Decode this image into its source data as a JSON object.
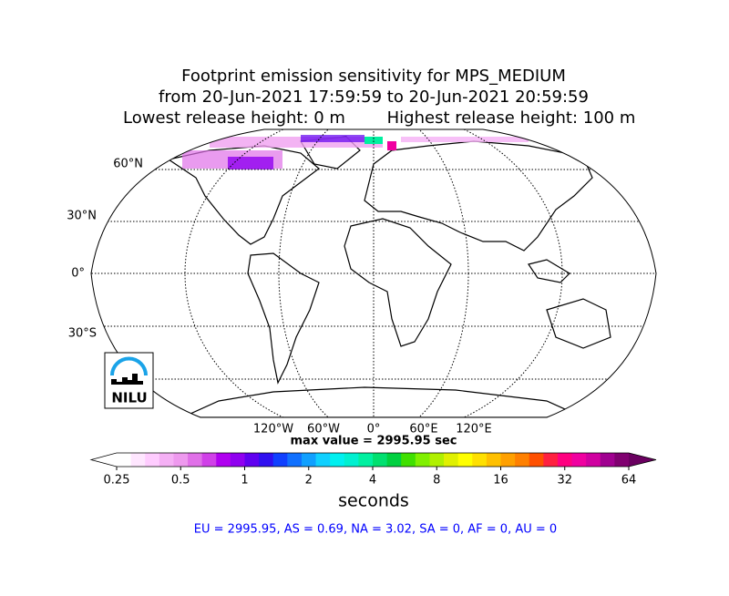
{
  "title": {
    "lines": [
      "Footprint emission sensitivity for MPS_MEDIUM",
      "from 20-Jun-2021 17:59:59 to 20-Jun-2021 20:59:59"
    ],
    "lowest": "Lowest release height: 0 m",
    "highest": "Highest release height: 100 m"
  },
  "map": {
    "lat_labels": [
      "60°N",
      "30°N",
      "0°",
      "30°S"
    ],
    "lon_labels": [
      "120°W",
      "60°W",
      "0°",
      "60°E",
      "120°E"
    ]
  },
  "logo": {
    "text": "NILU"
  },
  "max_value": "max value = 2995.95 sec",
  "colorbar": {
    "scale": "log",
    "ticks": [
      0.25,
      0.5,
      1,
      2,
      4,
      8,
      16,
      32,
      64
    ],
    "label": "seconds",
    "colors": [
      "#ffffff",
      "#ffe6ff",
      "#ffccff",
      "#f5b0f5",
      "#ee99ee",
      "#e070e8",
      "#d040e8",
      "#b000f0",
      "#9000f0",
      "#6000f0",
      "#3010f0",
      "#1040ff",
      "#1070ff",
      "#10a0ff",
      "#10d0ff",
      "#00f0f0",
      "#00f0d0",
      "#00f0a0",
      "#00e070",
      "#00d040",
      "#40e000",
      "#80f000",
      "#b0f000",
      "#e0f000",
      "#ffff00",
      "#ffe000",
      "#ffc000",
      "#ffa000",
      "#ff8000",
      "#ff5000",
      "#ff2040",
      "#ff0080",
      "#f000a0",
      "#d000a0",
      "#a00090",
      "#800070"
    ],
    "under": "#ffffff",
    "over": "#6a0060"
  },
  "footer": "EU = 2995.95,  AS = 0.69,  NA = 3.02,  SA = 0,  AF = 0,  AU = 0"
}
